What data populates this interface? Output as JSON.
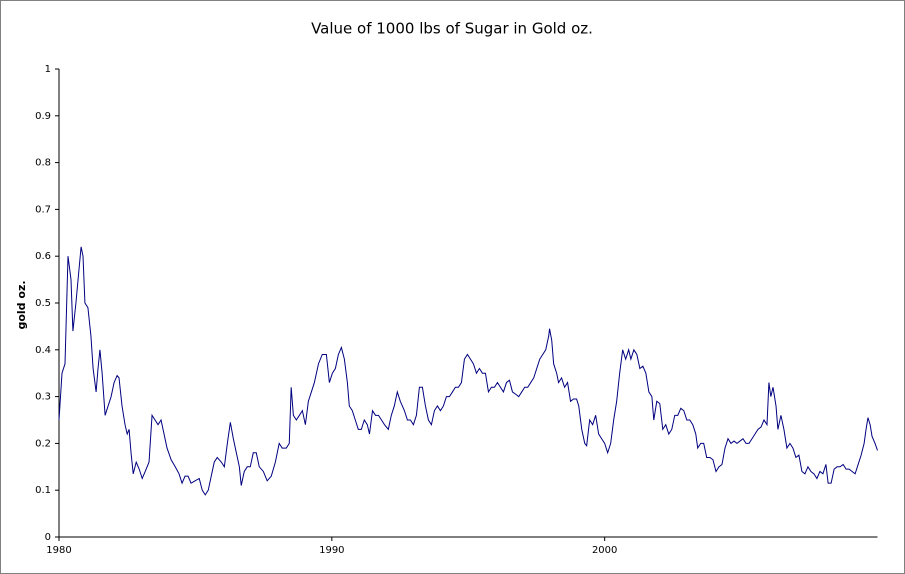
{
  "chart_data": {
    "type": "line",
    "title": "Value of 1000 lbs of Sugar in Gold oz.",
    "y_label": "gold oz.",
    "x": [
      1980.0,
      1980.11,
      1980.22,
      1980.33,
      1980.44,
      1980.51,
      1980.62,
      1980.73,
      1980.81,
      1980.88,
      1980.95,
      1981.06,
      1981.17,
      1981.25,
      1981.36,
      1981.43,
      1981.5,
      1981.58,
      1981.69,
      1981.8,
      1981.91,
      1982.02,
      1982.13,
      1982.2,
      1982.31,
      1982.42,
      1982.5,
      1982.57,
      1982.64,
      1982.72,
      1982.83,
      1982.94,
      1983.05,
      1983.16,
      1983.3,
      1983.41,
      1983.52,
      1983.63,
      1983.74,
      1983.85,
      1983.96,
      1984.11,
      1984.26,
      1984.4,
      1984.51,
      1984.62,
      1984.73,
      1984.84,
      1984.99,
      1985.14,
      1985.25,
      1985.36,
      1985.47,
      1985.58,
      1985.69,
      1985.8,
      1985.95,
      1986.06,
      1986.17,
      1986.28,
      1986.39,
      1986.5,
      1986.61,
      1986.68,
      1986.79,
      1986.9,
      1987.01,
      1987.12,
      1987.23,
      1987.34,
      1987.49,
      1987.63,
      1987.78,
      1987.93,
      1988.07,
      1988.18,
      1988.33,
      1988.44,
      1988.51,
      1988.59,
      1988.7,
      1988.81,
      1988.92,
      1989.03,
      1989.14,
      1989.25,
      1989.36,
      1989.51,
      1989.65,
      1989.8,
      1989.91,
      1990.02,
      1990.13,
      1990.24,
      1990.35,
      1990.46,
      1990.57,
      1990.64,
      1990.75,
      1990.86,
      1990.97,
      1991.08,
      1991.19,
      1991.3,
      1991.38,
      1991.49,
      1991.6,
      1991.71,
      1991.82,
      1991.93,
      1992.07,
      1992.18,
      1992.29,
      1992.4,
      1992.51,
      1992.66,
      1992.77,
      1992.88,
      1992.99,
      1993.1,
      1993.21,
      1993.32,
      1993.43,
      1993.54,
      1993.65,
      1993.76,
      1993.87,
      1993.98,
      1994.09,
      1994.2,
      1994.31,
      1994.42,
      1994.53,
      1994.64,
      1994.75,
      1994.86,
      1994.97,
      1995.08,
      1995.19,
      1995.3,
      1995.41,
      1995.52,
      1995.63,
      1995.74,
      1995.85,
      1995.96,
      1996.07,
      1996.18,
      1996.29,
      1996.4,
      1996.51,
      1996.62,
      1996.74,
      1996.85,
      1996.96,
      1997.07,
      1997.18,
      1997.29,
      1997.4,
      1997.51,
      1997.62,
      1997.73,
      1997.84,
      1997.95,
      1997.98,
      1998.06,
      1998.13,
      1998.24,
      1998.31,
      1998.42,
      1998.53,
      1998.64,
      1998.75,
      1998.86,
      1998.97,
      1999.05,
      1999.16,
      1999.27,
      1999.34,
      1999.45,
      1999.56,
      1999.67,
      1999.78,
      1999.89,
      2000.0,
      2000.11,
      2000.22,
      2000.33,
      2000.44,
      2000.55,
      2000.66,
      2000.77,
      2000.88,
      2000.96,
      2001.07,
      2001.18,
      2001.29,
      2001.4,
      2001.51,
      2001.62,
      2001.73,
      2001.8,
      2001.91,
      2002.02,
      2002.13,
      2002.24,
      2002.35,
      2002.46,
      2002.57,
      2002.68,
      2002.79,
      2002.9,
      2003.01,
      2003.12,
      2003.23,
      2003.34,
      2003.41,
      2003.52,
      2003.63,
      2003.74,
      2003.86,
      2003.97,
      2004.08,
      2004.19,
      2004.3,
      2004.41,
      2004.52,
      2004.63,
      2004.74,
      2004.85,
      2004.96,
      2005.07,
      2005.18,
      2005.29,
      2005.4,
      2005.51,
      2005.62,
      2005.73,
      2005.84,
      2005.95,
      2006.02,
      2006.09,
      2006.17,
      2006.28,
      2006.35,
      2006.46,
      2006.57,
      2006.68,
      2006.79,
      2006.9,
      2007.01,
      2007.12,
      2007.23,
      2007.34,
      2007.45,
      2007.56,
      2007.67,
      2007.78,
      2007.89,
      2008.0,
      2008.11,
      2008.19,
      2008.3,
      2008.41,
      2008.52,
      2008.63,
      2008.74,
      2008.85,
      2008.96,
      2009.07,
      2009.18,
      2009.29,
      2009.4,
      2009.51,
      2009.58,
      2009.65,
      2009.73,
      2009.8,
      2009.91,
      2010.0
    ],
    "series": [
      {
        "name": "gold oz.",
        "color": "#000080",
        "values": [
          0.25,
          0.35,
          0.37,
          0.6,
          0.55,
          0.44,
          0.5,
          0.57,
          0.62,
          0.6,
          0.5,
          0.49,
          0.43,
          0.36,
          0.31,
          0.36,
          0.4,
          0.35,
          0.26,
          0.28,
          0.3,
          0.33,
          0.345,
          0.34,
          0.28,
          0.24,
          0.22,
          0.23,
          0.18,
          0.135,
          0.16,
          0.145,
          0.125,
          0.14,
          0.16,
          0.26,
          0.25,
          0.24,
          0.25,
          0.22,
          0.19,
          0.165,
          0.15,
          0.135,
          0.115,
          0.13,
          0.13,
          0.115,
          0.12,
          0.125,
          0.1,
          0.09,
          0.1,
          0.13,
          0.16,
          0.17,
          0.16,
          0.15,
          0.2,
          0.245,
          0.21,
          0.18,
          0.15,
          0.11,
          0.14,
          0.15,
          0.15,
          0.18,
          0.18,
          0.15,
          0.14,
          0.12,
          0.13,
          0.16,
          0.2,
          0.19,
          0.19,
          0.2,
          0.32,
          0.26,
          0.25,
          0.26,
          0.27,
          0.24,
          0.29,
          0.31,
          0.33,
          0.37,
          0.39,
          0.39,
          0.33,
          0.35,
          0.36,
          0.39,
          0.405,
          0.38,
          0.33,
          0.28,
          0.27,
          0.25,
          0.23,
          0.23,
          0.25,
          0.24,
          0.22,
          0.27,
          0.26,
          0.26,
          0.25,
          0.24,
          0.23,
          0.26,
          0.28,
          0.31,
          0.29,
          0.27,
          0.25,
          0.25,
          0.24,
          0.26,
          0.32,
          0.32,
          0.28,
          0.25,
          0.24,
          0.27,
          0.28,
          0.27,
          0.28,
          0.3,
          0.3,
          0.31,
          0.32,
          0.32,
          0.33,
          0.38,
          0.39,
          0.38,
          0.37,
          0.35,
          0.36,
          0.35,
          0.35,
          0.31,
          0.32,
          0.32,
          0.33,
          0.32,
          0.31,
          0.33,
          0.335,
          0.31,
          0.305,
          0.3,
          0.31,
          0.32,
          0.32,
          0.33,
          0.34,
          0.36,
          0.38,
          0.39,
          0.4,
          0.43,
          0.445,
          0.42,
          0.37,
          0.35,
          0.33,
          0.34,
          0.32,
          0.33,
          0.29,
          0.295,
          0.295,
          0.28,
          0.23,
          0.2,
          0.195,
          0.25,
          0.24,
          0.26,
          0.22,
          0.21,
          0.2,
          0.18,
          0.2,
          0.25,
          0.29,
          0.35,
          0.4,
          0.38,
          0.4,
          0.38,
          0.4,
          0.39,
          0.36,
          0.365,
          0.35,
          0.31,
          0.3,
          0.25,
          0.29,
          0.285,
          0.23,
          0.24,
          0.22,
          0.23,
          0.26,
          0.26,
          0.275,
          0.27,
          0.25,
          0.25,
          0.24,
          0.22,
          0.19,
          0.2,
          0.2,
          0.17,
          0.17,
          0.165,
          0.14,
          0.15,
          0.155,
          0.19,
          0.21,
          0.2,
          0.205,
          0.2,
          0.205,
          0.21,
          0.2,
          0.2,
          0.21,
          0.22,
          0.23,
          0.235,
          0.25,
          0.24,
          0.33,
          0.3,
          0.32,
          0.28,
          0.23,
          0.26,
          0.23,
          0.19,
          0.2,
          0.19,
          0.17,
          0.175,
          0.14,
          0.135,
          0.15,
          0.14,
          0.135,
          0.125,
          0.14,
          0.135,
          0.155,
          0.115,
          0.115,
          0.145,
          0.15,
          0.15,
          0.155,
          0.145,
          0.145,
          0.14,
          0.135,
          0.155,
          0.175,
          0.2,
          0.23,
          0.255,
          0.24,
          0.215,
          0.2,
          0.185
        ]
      }
    ],
    "xlim": [
      1980,
      2010
    ],
    "xticks": [
      1980,
      1990,
      2000
    ],
    "ylim": [
      0,
      1
    ],
    "yticks": [
      0,
      0.1,
      0.2,
      0.3,
      0.4,
      0.5,
      0.6,
      0.7,
      0.8,
      0.9,
      1
    ]
  }
}
